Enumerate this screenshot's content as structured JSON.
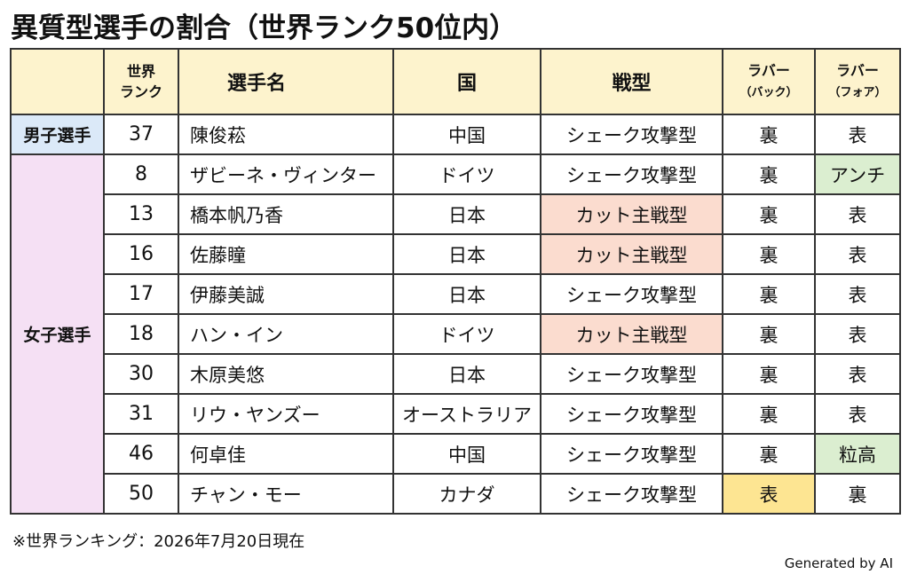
{
  "title": "異質型選手の割合（世界ランク50位内）",
  "table": {
    "headers": {
      "group": "",
      "rank_line1": "世界",
      "rank_line2": "ランク",
      "name": "選手名",
      "country": "国",
      "style": "戦型",
      "back_line1": "ラバー",
      "back_line2": "（バック）",
      "fore_line1": "ラバー",
      "fore_line2": "（フォア）"
    },
    "groups": {
      "men": "男子選手",
      "women": "女子選手"
    },
    "rows": [
      {
        "rank": "37",
        "name": "陳俊菘",
        "country": "中国",
        "style": "シェーク攻撃型",
        "back": "裏",
        "fore": "表"
      },
      {
        "rank": "8",
        "name": "ザビーネ・ヴィンター",
        "country": "ドイツ",
        "style": "シェーク攻撃型",
        "back": "裏",
        "fore": "アンチ"
      },
      {
        "rank": "13",
        "name": "橋本帆乃香",
        "country": "日本",
        "style": "カット主戦型",
        "back": "裏",
        "fore": "表"
      },
      {
        "rank": "16",
        "name": "佐藤瞳",
        "country": "日本",
        "style": "カット主戦型",
        "back": "裏",
        "fore": "表"
      },
      {
        "rank": "17",
        "name": "伊藤美誠",
        "country": "日本",
        "style": "シェーク攻撃型",
        "back": "裏",
        "fore": "表"
      },
      {
        "rank": "18",
        "name": "ハン・イン",
        "country": "ドイツ",
        "style": "カット主戦型",
        "back": "裏",
        "fore": "表"
      },
      {
        "rank": "30",
        "name": "木原美悠",
        "country": "日本",
        "style": "シェーク攻撃型",
        "back": "裏",
        "fore": "表"
      },
      {
        "rank": "31",
        "name": "リウ・ヤンズー",
        "country": "オーストラリア",
        "style": "シェーク攻撃型",
        "back": "裏",
        "fore": "表"
      },
      {
        "rank": "46",
        "name": "何卓佳",
        "country": "中国",
        "style": "シェーク攻撃型",
        "back": "裏",
        "fore": "粒高"
      },
      {
        "rank": "50",
        "name": "チャン・モー",
        "country": "カナダ",
        "style": "シェーク攻撃型",
        "back": "表",
        "fore": "裏"
      }
    ],
    "colors": {
      "header_bg": "#fdf3cd",
      "men_group_bg": "#dbe9f8",
      "women_group_bg": "#f5e0f4",
      "cut_style_bg": "#fbdccf",
      "special_fore_bg": "#dbeed0",
      "special_back_bg": "#fde592"
    }
  },
  "footnote": "※世界ランキング：2026年7月20日現在",
  "credit": "Generated by AI"
}
